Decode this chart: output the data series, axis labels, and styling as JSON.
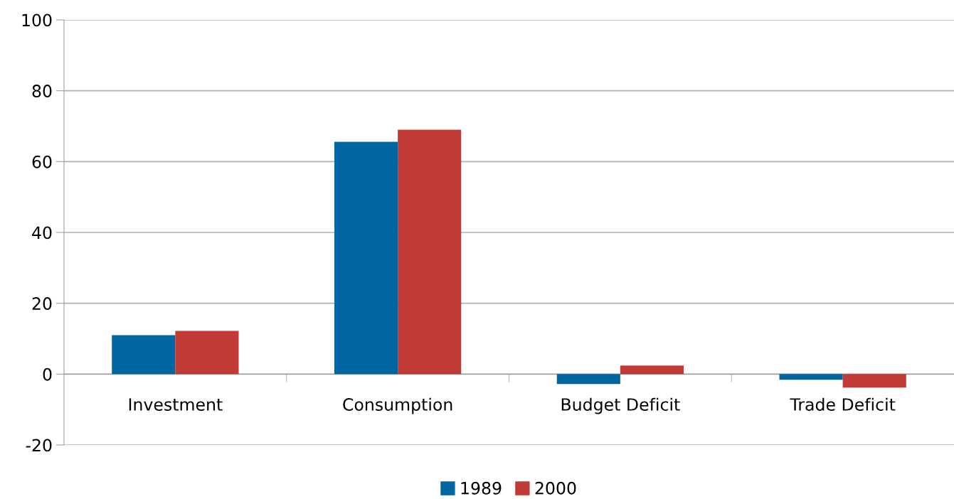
{
  "chart_data": {
    "type": "bar",
    "categories": [
      "Investment",
      "Consumption",
      "Budget Deficit",
      "Trade Deficit"
    ],
    "series": [
      {
        "name": "1989",
        "color": "#0066a1",
        "values": [
          11,
          65.6,
          -2.8,
          -1.6
        ]
      },
      {
        "name": "2000",
        "color": "#c03a36",
        "values": [
          12.2,
          69,
          2.4,
          -3.8
        ]
      }
    ],
    "ylim": [
      -20,
      100
    ],
    "yticks": [
      -20,
      0,
      20,
      40,
      60,
      80,
      100
    ],
    "grid": "y",
    "legend": "bottom"
  }
}
